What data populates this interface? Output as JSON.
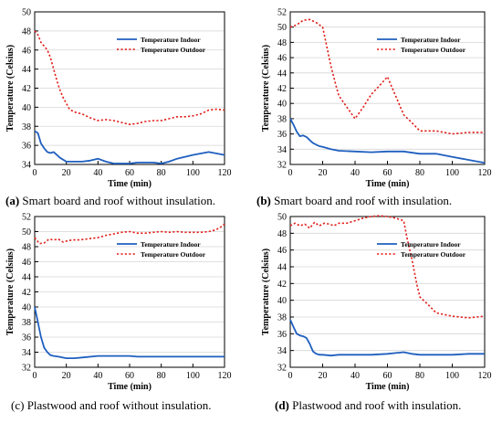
{
  "chart_data": [
    {
      "type": "line",
      "panel_label": "(a)",
      "caption": "Smart board and roof without insulation.",
      "xlabel": "Time (min)",
      "ylabel": "Temperature (Celsius)",
      "xlim": [
        0,
        120
      ],
      "ylim": [
        34,
        50
      ],
      "xticks": [
        0,
        20,
        40,
        60,
        80,
        100,
        120
      ],
      "yticks": [
        34,
        36,
        38,
        40,
        42,
        44,
        46,
        48,
        50
      ],
      "grid": "horizontal",
      "legend": "upper-right",
      "series": [
        {
          "name": "Temperature Indoor",
          "color": "#1f5fbf",
          "style": "solid",
          "x": [
            0,
            2,
            4,
            6,
            8,
            10,
            12,
            14,
            16,
            18,
            20,
            25,
            30,
            35,
            40,
            45,
            50,
            55,
            60,
            65,
            70,
            75,
            80,
            85,
            90,
            100,
            110,
            120
          ],
          "y": [
            37.5,
            37.3,
            36.2,
            35.7,
            35.3,
            35.2,
            35.3,
            35.0,
            34.7,
            34.5,
            34.3,
            34.3,
            34.3,
            34.4,
            34.6,
            34.3,
            34.1,
            34.1,
            34.1,
            34.2,
            34.2,
            34.2,
            34.1,
            34.3,
            34.6,
            35.0,
            35.3,
            35.0
          ]
        },
        {
          "name": "Temperature Outdoor",
          "color": "#e0201b",
          "style": "dotted",
          "x": [
            0,
            2,
            4,
            6,
            8,
            10,
            12,
            14,
            16,
            18,
            20,
            22,
            25,
            30,
            35,
            40,
            45,
            50,
            55,
            60,
            65,
            70,
            75,
            80,
            85,
            90,
            95,
            100,
            105,
            110,
            115,
            120
          ],
          "y": [
            48.0,
            47.6,
            46.8,
            46.4,
            46.0,
            45.2,
            44.0,
            42.8,
            41.8,
            41.0,
            40.4,
            39.8,
            39.5,
            39.3,
            38.9,
            38.6,
            38.7,
            38.6,
            38.4,
            38.2,
            38.3,
            38.5,
            38.6,
            38.6,
            38.8,
            39.0,
            39.0,
            39.1,
            39.3,
            39.7,
            39.8,
            39.7
          ]
        }
      ]
    },
    {
      "type": "line",
      "panel_label": "(b)",
      "caption": "Smart board and roof with insulation.",
      "xlabel": "Time (min)",
      "ylabel": "Temperature (Celsius)",
      "xlim": [
        0,
        120
      ],
      "ylim": [
        32,
        52
      ],
      "xticks": [
        0,
        20,
        40,
        60,
        80,
        100,
        120
      ],
      "yticks": [
        32,
        34,
        36,
        38,
        40,
        42,
        44,
        46,
        48,
        50,
        52
      ],
      "grid": "horizontal",
      "legend": "upper-right",
      "series": [
        {
          "name": "Temperature Indoor",
          "color": "#1f5fbf",
          "style": "solid",
          "x": [
            0,
            2,
            4,
            6,
            8,
            10,
            12,
            14,
            16,
            18,
            20,
            25,
            30,
            40,
            50,
            60,
            70,
            80,
            90,
            100,
            110,
            120
          ],
          "y": [
            38.0,
            37.2,
            36.3,
            35.7,
            35.8,
            35.6,
            35.2,
            34.8,
            34.6,
            34.4,
            34.3,
            34.0,
            33.8,
            33.7,
            33.6,
            33.7,
            33.7,
            33.4,
            33.4,
            33.0,
            32.6,
            32.2
          ]
        },
        {
          "name": "Temperature Outdoor",
          "color": "#e0201b",
          "style": "dotted",
          "x": [
            0,
            4,
            8,
            12,
            16,
            20,
            22,
            25,
            28,
            30,
            35,
            40,
            45,
            50,
            55,
            60,
            65,
            70,
            75,
            80,
            90,
            100,
            110,
            120
          ],
          "y": [
            50.0,
            50.3,
            50.9,
            51.0,
            50.6,
            50.0,
            48.0,
            45.0,
            42.5,
            41.0,
            39.5,
            38.0,
            39.5,
            41.2,
            42.3,
            43.5,
            41.0,
            38.5,
            37.5,
            36.4,
            36.4,
            36.0,
            36.2,
            36.2
          ]
        }
      ]
    },
    {
      "type": "line",
      "panel_label": "(c)",
      "caption": "Plastwood and roof without insulation.",
      "xlabel": "Time (min)",
      "ylabel": "Temperature (Celsius)",
      "xlim": [
        0,
        120
      ],
      "ylim": [
        32,
        52
      ],
      "xticks": [
        0,
        20,
        40,
        60,
        80,
        100,
        120
      ],
      "yticks": [
        32,
        34,
        36,
        38,
        40,
        42,
        44,
        46,
        48,
        50,
        52
      ],
      "grid": "horizontal",
      "legend": "upper-right",
      "series": [
        {
          "name": "Temperature Indoor",
          "color": "#1f5fbf",
          "style": "solid",
          "x": [
            0,
            2,
            4,
            6,
            8,
            10,
            12,
            15,
            20,
            25,
            30,
            40,
            50,
            60,
            65,
            70,
            80,
            90,
            100,
            110,
            120
          ],
          "y": [
            40.0,
            38.0,
            36.0,
            34.6,
            34.0,
            33.6,
            33.5,
            33.4,
            33.2,
            33.2,
            33.3,
            33.5,
            33.5,
            33.5,
            33.4,
            33.4,
            33.4,
            33.4,
            33.4,
            33.4,
            33.4
          ]
        },
        {
          "name": "Temperature Outdoor",
          "color": "#e0201b",
          "style": "dotted",
          "x": [
            0,
            3,
            6,
            9,
            12,
            15,
            18,
            21,
            24,
            28,
            32,
            36,
            40,
            45,
            50,
            55,
            60,
            65,
            70,
            75,
            80,
            85,
            90,
            95,
            100,
            105,
            110,
            114,
            117,
            120
          ],
          "y": [
            49.2,
            48.4,
            48.5,
            49.0,
            48.9,
            49.0,
            48.6,
            48.8,
            48.9,
            48.9,
            49.0,
            49.1,
            49.2,
            49.5,
            49.7,
            49.9,
            50.0,
            49.8,
            49.8,
            49.9,
            50.0,
            49.9,
            50.0,
            49.9,
            49.9,
            49.9,
            50.0,
            50.2,
            50.5,
            51.0
          ]
        }
      ]
    },
    {
      "type": "line",
      "panel_label": "(d)",
      "caption": "Plastwood and roof with insulation.",
      "xlabel": "Time (min)",
      "ylabel": "Temperature (Celsius)",
      "xlim": [
        0,
        120
      ],
      "ylim": [
        32,
        50
      ],
      "xticks": [
        0,
        20,
        40,
        60,
        80,
        100,
        120
      ],
      "yticks": [
        32,
        34,
        36,
        38,
        40,
        42,
        44,
        46,
        48,
        50
      ],
      "grid": "horizontal",
      "legend": "upper-right",
      "series": [
        {
          "name": "Temperature Indoor",
          "color": "#1f5fbf",
          "style": "solid",
          "x": [
            0,
            2,
            4,
            6,
            8,
            10,
            12,
            14,
            16,
            18,
            20,
            25,
            30,
            40,
            50,
            60,
            65,
            70,
            75,
            80,
            90,
            100,
            110,
            120
          ],
          "y": [
            37.7,
            36.8,
            36.0,
            35.8,
            35.7,
            35.5,
            34.8,
            33.9,
            33.6,
            33.5,
            33.5,
            33.4,
            33.5,
            33.5,
            33.5,
            33.6,
            33.7,
            33.8,
            33.6,
            33.5,
            33.5,
            33.5,
            33.6,
            33.6
          ]
        },
        {
          "name": "Temperature Outdoor",
          "color": "#e0201b",
          "style": "dotted",
          "x": [
            0,
            3,
            6,
            9,
            12,
            15,
            18,
            21,
            24,
            27,
            30,
            35,
            40,
            45,
            50,
            55,
            60,
            65,
            70,
            72,
            75,
            78,
            80,
            85,
            90,
            95,
            100,
            105,
            110,
            115,
            120
          ],
          "y": [
            48.9,
            49.2,
            48.9,
            49.1,
            48.6,
            49.3,
            48.9,
            49.2,
            49.1,
            48.9,
            49.2,
            49.2,
            49.5,
            49.8,
            50.0,
            50.1,
            50.0,
            49.8,
            49.5,
            47.5,
            45.0,
            42.0,
            40.4,
            39.5,
            38.5,
            38.3,
            38.1,
            38.0,
            37.9,
            38.0,
            38.1
          ]
        }
      ]
    }
  ]
}
